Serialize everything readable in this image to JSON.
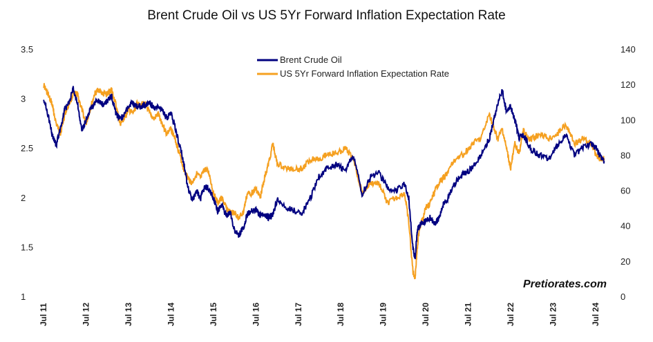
{
  "chart_data": {
    "type": "line",
    "title": "Brent Crude Oil vs US 5Yr Forward Inflation Expectation Rate",
    "xlabel": "",
    "ylabel_left": "",
    "ylabel_right": "",
    "x_tick_labels": [
      "Jul 11",
      "Jul 12",
      "Jul 13",
      "Jul 14",
      "Jul 15",
      "Jul 16",
      "Jul 17",
      "Jul 18",
      "Jul 19",
      "Jul 20",
      "Jul 21",
      "Jul 22",
      "Jul 23",
      "Jul 24"
    ],
    "y_left": {
      "min": 1,
      "max": 3.5,
      "ticks": [
        "1",
        "1.5",
        "2",
        "2.5",
        "3",
        "3.5"
      ]
    },
    "y_right": {
      "min": 0,
      "max": 140,
      "ticks": [
        "0",
        "20",
        "40",
        "60",
        "80",
        "100",
        "120",
        "140"
      ]
    },
    "legend_position": "top-center",
    "grid": false,
    "series": [
      {
        "name": "Brent Crude Oil",
        "axis": "right",
        "color": "#000080",
        "x": [
          2011.5,
          2011.6,
          2011.7,
          2011.8,
          2011.9,
          2012.0,
          2012.1,
          2012.2,
          2012.3,
          2012.4,
          2012.5,
          2012.6,
          2012.7,
          2012.8,
          2012.9,
          2013.0,
          2013.1,
          2013.2,
          2013.3,
          2013.4,
          2013.5,
          2013.6,
          2013.7,
          2013.8,
          2013.9,
          2014.0,
          2014.1,
          2014.2,
          2014.3,
          2014.4,
          2014.5,
          2014.6,
          2014.7,
          2014.8,
          2014.9,
          2015.0,
          2015.1,
          2015.2,
          2015.3,
          2015.4,
          2015.5,
          2015.6,
          2015.7,
          2015.8,
          2015.9,
          2016.0,
          2016.1,
          2016.2,
          2016.3,
          2016.4,
          2016.5,
          2016.6,
          2016.7,
          2016.8,
          2016.9,
          2017.0,
          2017.2,
          2017.4,
          2017.6,
          2017.8,
          2018.0,
          2018.2,
          2018.4,
          2018.6,
          2018.8,
          2019.0,
          2019.2,
          2019.4,
          2019.6,
          2019.8,
          2020.0,
          2020.1,
          2020.2,
          2020.25,
          2020.3,
          2020.35,
          2020.4,
          2020.5,
          2020.6,
          2020.7,
          2020.8,
          2020.9,
          2021.0,
          2021.2,
          2021.4,
          2021.6,
          2021.8,
          2022.0,
          2022.1,
          2022.2,
          2022.3,
          2022.4,
          2022.5,
          2022.6,
          2022.7,
          2022.8,
          2022.9,
          2023.0,
          2023.2,
          2023.4,
          2023.6,
          2023.8,
          2024.0,
          2024.2,
          2024.4,
          2024.5,
          2024.6,
          2024.7
        ],
        "y": [
          113,
          104,
          92,
          86,
          96,
          106,
          110,
          118,
          110,
          94,
          100,
          106,
          110,
          111,
          109,
          111,
          114,
          104,
          101,
          103,
          108,
          110,
          108,
          108,
          109,
          110,
          107,
          108,
          106,
          101,
          104,
          96,
          86,
          76,
          62,
          55,
          60,
          56,
          63,
          61,
          56,
          49,
          52,
          46,
          48,
          37,
          35,
          39,
          47,
          49,
          49,
          46,
          47,
          45,
          47,
          55,
          51,
          49,
          48,
          57,
          69,
          73,
          75,
          72,
          80,
          58,
          68,
          70,
          62,
          60,
          64,
          56,
          27,
          22,
          38,
          40,
          42,
          43,
          45,
          42,
          44,
          52,
          55,
          65,
          70,
          73,
          80,
          90,
          100,
          110,
          117,
          105,
          108,
          100,
          90,
          92,
          87,
          83,
          80,
          78,
          86,
          92,
          80,
          85,
          87,
          85,
          80,
          77
        ]
      },
      {
        "name": "US 5Yr Forward Inflation Expectation Rate",
        "axis": "left",
        "color": "#F5A020",
        "x": [
          2011.5,
          2011.6,
          2011.7,
          2011.8,
          2011.9,
          2012.0,
          2012.1,
          2012.2,
          2012.3,
          2012.4,
          2012.5,
          2012.6,
          2012.7,
          2012.8,
          2012.9,
          2013.0,
          2013.1,
          2013.2,
          2013.3,
          2013.4,
          2013.5,
          2013.6,
          2013.7,
          2013.8,
          2013.9,
          2014.0,
          2014.1,
          2014.2,
          2014.3,
          2014.4,
          2014.5,
          2014.6,
          2014.7,
          2014.8,
          2014.9,
          2015.0,
          2015.1,
          2015.2,
          2015.3,
          2015.4,
          2015.5,
          2015.6,
          2015.7,
          2015.8,
          2015.9,
          2016.0,
          2016.1,
          2016.2,
          2016.3,
          2016.4,
          2016.5,
          2016.6,
          2016.7,
          2016.8,
          2016.9,
          2017.0,
          2017.2,
          2017.4,
          2017.6,
          2017.8,
          2018.0,
          2018.2,
          2018.4,
          2018.6,
          2018.8,
          2019.0,
          2019.2,
          2019.4,
          2019.6,
          2019.8,
          2020.0,
          2020.1,
          2020.2,
          2020.25,
          2020.3,
          2020.35,
          2020.4,
          2020.5,
          2020.6,
          2020.7,
          2020.8,
          2020.9,
          2021.0,
          2021.2,
          2021.4,
          2021.6,
          2021.8,
          2022.0,
          2022.1,
          2022.2,
          2022.3,
          2022.4,
          2022.5,
          2022.6,
          2022.7,
          2022.8,
          2022.9,
          2023.0,
          2023.2,
          2023.4,
          2023.6,
          2023.8,
          2024.0,
          2024.2,
          2024.4,
          2024.5,
          2024.6,
          2024.7
        ],
        "y": [
          3.15,
          3.05,
          2.95,
          2.75,
          2.65,
          2.85,
          2.95,
          3.05,
          3.05,
          2.9,
          2.75,
          2.9,
          3.05,
          3.1,
          3.05,
          3.05,
          3.1,
          2.95,
          2.75,
          2.8,
          2.9,
          2.85,
          2.95,
          2.95,
          2.95,
          2.85,
          2.8,
          2.85,
          2.75,
          2.65,
          2.7,
          2.6,
          2.45,
          2.3,
          2.2,
          2.15,
          2.25,
          2.2,
          2.3,
          2.25,
          2.05,
          1.95,
          2.0,
          1.9,
          1.85,
          1.85,
          1.8,
          1.85,
          2.05,
          2.05,
          2.1,
          2.0,
          2.2,
          2.35,
          2.55,
          2.35,
          2.3,
          2.3,
          2.3,
          2.4,
          2.4,
          2.45,
          2.45,
          2.5,
          2.4,
          2.05,
          2.15,
          2.15,
          1.95,
          2.0,
          2.05,
          1.75,
          1.25,
          1.2,
          1.5,
          1.7,
          1.75,
          1.9,
          1.95,
          2.05,
          2.15,
          2.2,
          2.25,
          2.4,
          2.45,
          2.55,
          2.6,
          2.85,
          2.7,
          2.6,
          2.7,
          2.5,
          2.3,
          2.55,
          2.45,
          2.7,
          2.6,
          2.6,
          2.65,
          2.6,
          2.65,
          2.75,
          2.55,
          2.6,
          2.55,
          2.45,
          2.4,
          2.4
        ]
      }
    ]
  },
  "watermark": "Pretiorates.com"
}
